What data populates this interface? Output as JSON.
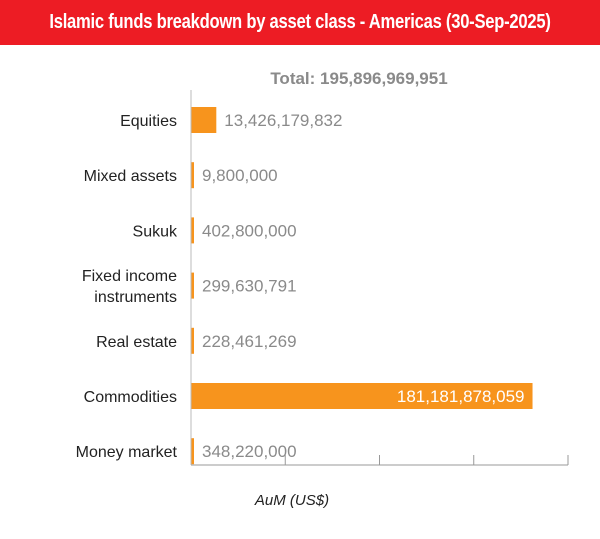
{
  "chart_data": {
    "type": "bar",
    "orientation": "horizontal",
    "title": "Islamic funds breakdown by asset class - Americas (30-Sep-2025)",
    "subtitle": "Total: 195,896,969,951",
    "xlabel": "AuM (US$)",
    "ylabel": "",
    "xlim": [
      0,
      200000000000
    ],
    "categories": [
      [
        "Equities"
      ],
      [
        "Mixed assets"
      ],
      [
        "Sukuk"
      ],
      [
        "Fixed income",
        "instruments"
      ],
      [
        "Real estate"
      ],
      [
        "Commodities"
      ],
      [
        "Money market"
      ]
    ],
    "values": [
      13426179832,
      9800000,
      402800000,
      299630791,
      228461269,
      181181878059,
      348220000
    ],
    "value_labels": [
      "13,426,179,832",
      "9,800,000",
      "402,800,000",
      "299,630,791",
      "228,461,269",
      "181,181,878,059",
      "348,220,000"
    ],
    "bar_color": "#F7941D",
    "header_color": "#ED1C24",
    "grid": false
  }
}
